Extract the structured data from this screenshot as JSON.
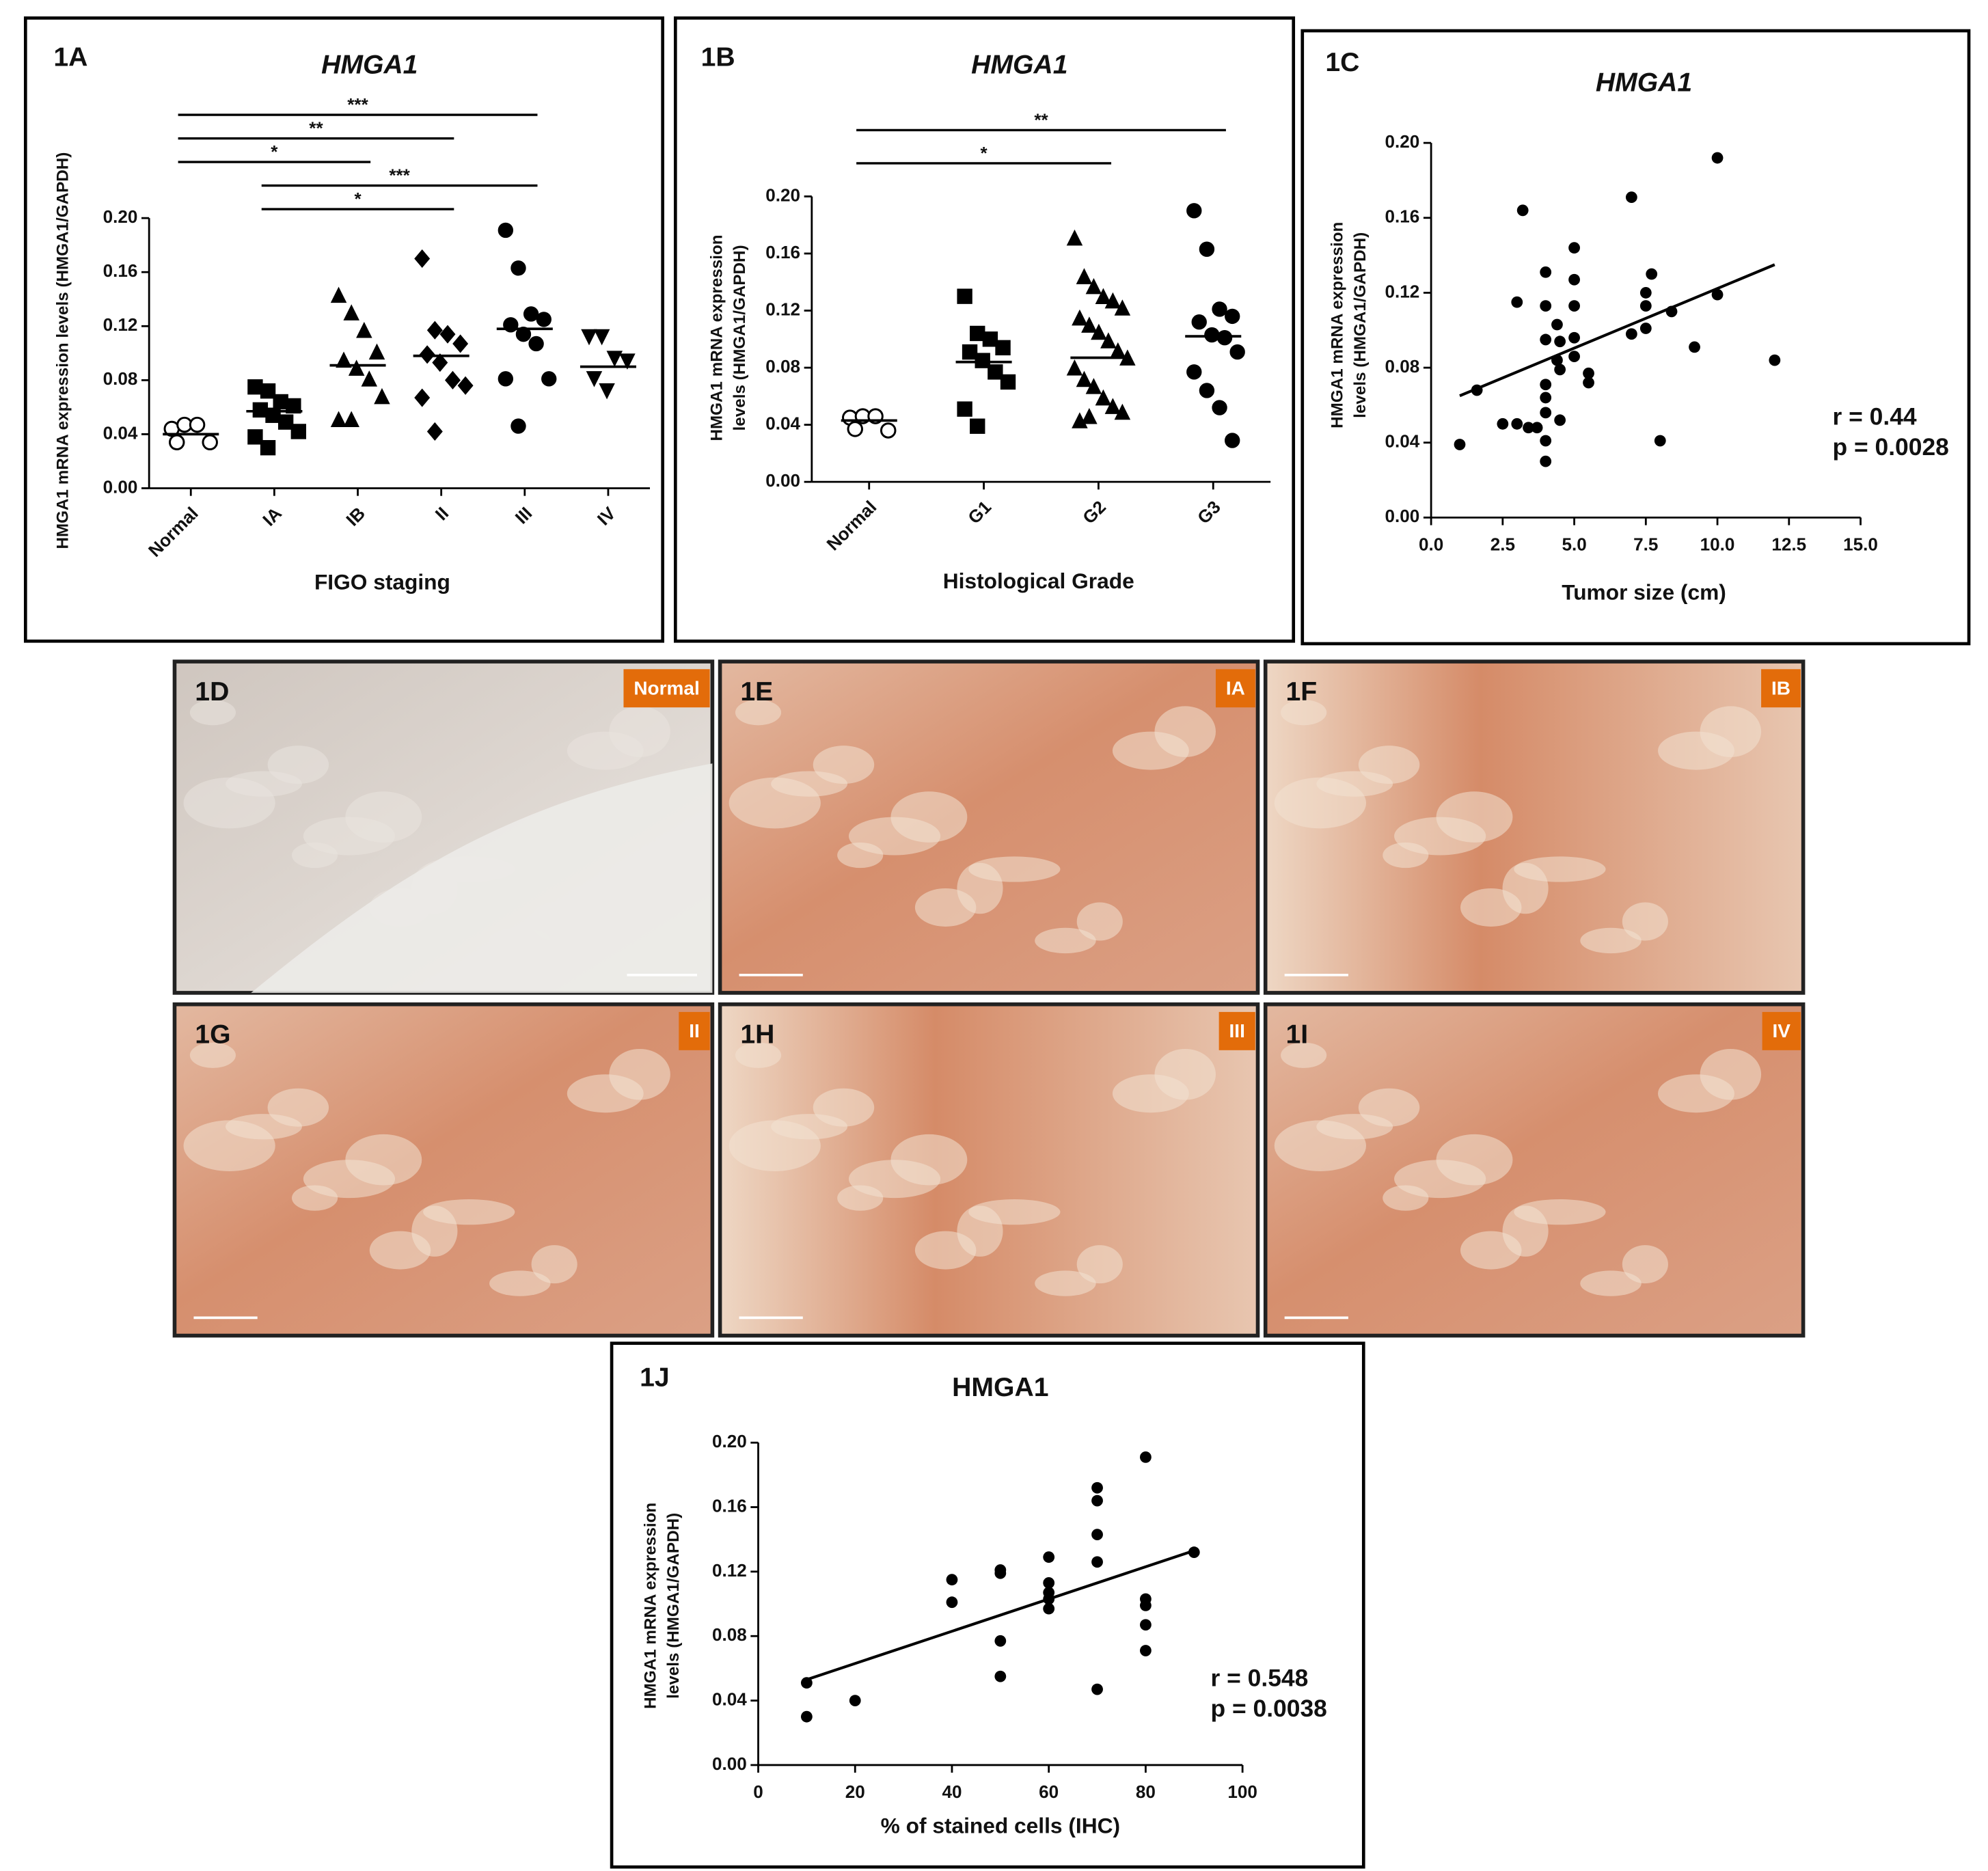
{
  "chart_data": [
    {
      "type": "dotplot",
      "panel": "1A",
      "title": "HMGA1",
      "ylabel": [
        "HMGA1 mRNA expression levels (HMGA1/GAPDH)"
      ],
      "xlabel": "FIGO staging",
      "categories": [
        "Normal",
        "IA",
        "IB",
        "II",
        "III",
        "IV"
      ],
      "markers": [
        "open-circle",
        "square",
        "triangle",
        "diamond",
        "circle",
        "down-triangle"
      ],
      "points": [
        [
          0.044,
          0.047,
          0.047,
          0.034,
          0.034
        ],
        [
          0.075,
          0.072,
          0.064,
          0.061,
          0.058,
          0.054,
          0.049,
          0.042,
          0.038,
          0.03
        ],
        [
          0.142,
          0.129,
          0.116,
          0.1,
          0.094,
          0.088,
          0.08,
          0.067,
          0.05,
          0.05
        ],
        [
          0.17,
          0.117,
          0.114,
          0.107,
          0.099,
          0.093,
          0.08,
          0.076,
          0.067,
          0.042
        ],
        [
          0.191,
          0.163,
          0.129,
          0.125,
          0.121,
          0.114,
          0.107,
          0.081,
          0.081,
          0.046
        ],
        [
          0.113,
          0.113,
          0.097,
          0.095,
          0.082,
          0.073
        ]
      ],
      "means": [
        0.04,
        0.057,
        0.091,
        0.098,
        0.118,
        0.09
      ],
      "brackets": [
        {
          "from": 0,
          "to": 4,
          "label": "***"
        },
        {
          "from": 0,
          "to": 3,
          "label": "**"
        },
        {
          "from": 0,
          "to": 2,
          "label": "*"
        },
        {
          "from": 1,
          "to": 4,
          "label": "***"
        },
        {
          "from": 1,
          "to": 3,
          "label": "*"
        }
      ],
      "ylim": [
        0,
        0.2
      ],
      "yticks": [
        {
          "value": 0,
          "label": "0.00"
        },
        0.04,
        0.08,
        0.12,
        0.16,
        {
          "value": 0.2,
          "label": "0.20"
        }
      ]
    },
    {
      "type": "dotplot",
      "panel": "1B",
      "title": "HMGA1",
      "ylabel": [
        "HMGA1 mRNA expression",
        "levels (HMGA1/GAPDH)"
      ],
      "xlabel": "Histological Grade",
      "categories": [
        "Normal",
        "G1",
        "G2",
        "G3"
      ],
      "markers": [
        "open-circle",
        "square",
        "triangle",
        "circle"
      ],
      "points": [
        [
          0.045,
          0.046,
          0.046,
          0.036,
          0.037
        ],
        [
          0.13,
          0.104,
          0.1,
          0.094,
          0.091,
          0.085,
          0.077,
          0.07,
          0.051,
          0.039
        ],
        [
          0.17,
          0.143,
          0.136,
          0.129,
          0.126,
          0.121,
          0.114,
          0.109,
          0.104,
          0.098,
          0.091,
          0.086,
          0.079,
          0.071,
          0.066,
          0.058,
          0.052,
          0.048,
          0.042,
          0.045
        ],
        [
          0.19,
          0.163,
          0.121,
          0.116,
          0.112,
          0.103,
          0.101,
          0.091,
          0.077,
          0.064,
          0.052,
          0.029
        ]
      ],
      "means": [
        0.043,
        0.084,
        0.087,
        0.102
      ],
      "brackets": [
        {
          "from": 0,
          "to": 3,
          "label": "**"
        },
        {
          "from": 0,
          "to": 2,
          "label": "*"
        }
      ],
      "ylim": [
        0,
        0.2
      ],
      "yticks": [
        {
          "value": 0,
          "label": "0.00"
        },
        0.04,
        0.08,
        0.12,
        0.16,
        {
          "value": 0.2,
          "label": "0.20"
        }
      ]
    },
    {
      "type": "scatter",
      "panel": "1C",
      "title": "HMGA1",
      "ylabel": [
        "HMGA1 mRNA expression",
        "levels (HMGA1/GAPDH)"
      ],
      "xlabel": "Tumor size (cm)",
      "x": [
        1.0,
        1.6,
        2.5,
        3.0,
        3.2,
        3.0,
        3.4,
        3.7,
        4.0,
        4.0,
        4.0,
        4.0,
        4.0,
        4.0,
        4.0,
        4.0,
        4.4,
        4.4,
        4.5,
        4.5,
        4.5,
        5.0,
        5.0,
        5.0,
        5.0,
        5.0,
        5.5,
        5.5,
        7.0,
        7.0,
        7.5,
        7.5,
        7.5,
        7.7,
        8.0,
        8.4,
        9.2,
        10.0,
        10.0,
        12.0
      ],
      "y": [
        0.039,
        0.068,
        0.05,
        0.115,
        0.164,
        0.05,
        0.048,
        0.048,
        0.131,
        0.113,
        0.095,
        0.071,
        0.064,
        0.056,
        0.03,
        0.041,
        0.103,
        0.084,
        0.052,
        0.079,
        0.094,
        0.144,
        0.127,
        0.113,
        0.096,
        0.086,
        0.077,
        0.072,
        0.171,
        0.098,
        0.12,
        0.113,
        0.101,
        0.13,
        0.041,
        0.11,
        0.091,
        0.192,
        0.119,
        0.084
      ],
      "fit": {
        "x": [
          1.0,
          12.0
        ],
        "y": [
          0.065,
          0.135
        ]
      },
      "annotations": [
        "r = 0.44",
        "p = 0.0028"
      ],
      "xlim": [
        0,
        15
      ],
      "xticks": [
        {
          "value": 0,
          "label": "0.0"
        },
        2.5,
        {
          "value": 5,
          "label": "5.0"
        },
        7.5,
        {
          "value": 10,
          "label": "10.0"
        },
        12.5,
        {
          "value": 15,
          "label": "15.0"
        }
      ],
      "ylim": [
        0,
        0.2
      ],
      "yticks": [
        {
          "value": 0,
          "label": "0.00"
        },
        0.04,
        0.08,
        0.12,
        0.16,
        {
          "value": 0.2,
          "label": "0.20"
        }
      ]
    },
    {
      "type": "scatter",
      "panel": "1J",
      "title": "HMGA1",
      "ylabel": [
        "HMGA1 mRNA expression",
        "levels (HMGA1/GAPDH)"
      ],
      "xlabel": "% of stained cells (IHC)",
      "x": [
        10,
        10,
        20,
        40,
        40,
        50,
        50,
        50,
        50,
        60,
        60,
        60,
        60,
        60,
        70,
        70,
        70,
        70,
        70,
        80,
        80,
        80,
        80,
        80,
        90
      ],
      "y": [
        0.051,
        0.03,
        0.04,
        0.115,
        0.101,
        0.121,
        0.119,
        0.077,
        0.055,
        0.129,
        0.113,
        0.107,
        0.097,
        0.103,
        0.172,
        0.164,
        0.143,
        0.126,
        0.047,
        0.191,
        0.103,
        0.099,
        0.087,
        0.071,
        0.132
      ],
      "fit": {
        "x": [
          10,
          90
        ],
        "y": [
          0.053,
          0.133
        ]
      },
      "annotations": [
        "r = 0.548",
        "p = 0.0038"
      ],
      "xlim": [
        0,
        100
      ],
      "xticks": [
        0,
        20,
        40,
        60,
        80,
        100
      ],
      "ylim": [
        0,
        0.2
      ],
      "yticks": [
        {
          "value": 0,
          "label": "0.00"
        },
        0.04,
        0.08,
        0.12,
        0.16,
        {
          "value": 0.2,
          "label": "0.20"
        }
      ]
    }
  ],
  "images": [
    {
      "label": "1D",
      "stage": "Normal"
    },
    {
      "label": "1E",
      "stage": "IA"
    },
    {
      "label": "1F",
      "stage": "IB"
    },
    {
      "label": "1G",
      "stage": "II"
    },
    {
      "label": "1H",
      "stage": "III"
    },
    {
      "label": "1I",
      "stage": "IV"
    }
  ]
}
